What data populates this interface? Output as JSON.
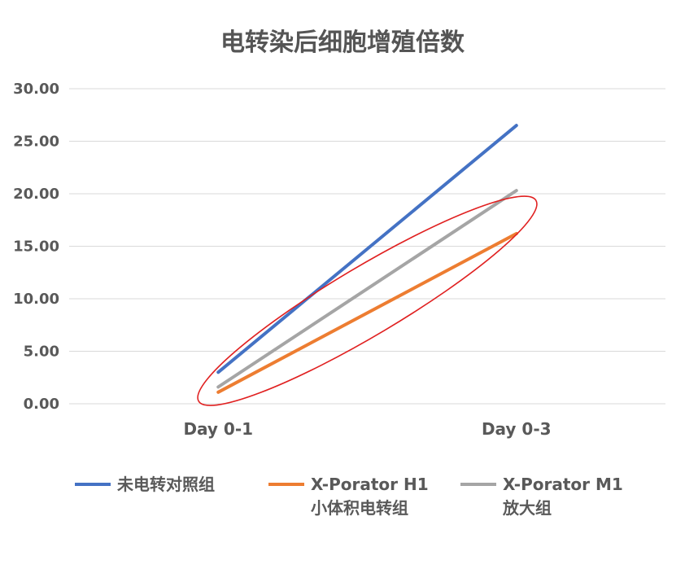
{
  "chart_data": {
    "type": "line",
    "title": "电转染后细胞增殖倍数",
    "categories": [
      "Day 0-1",
      "Day 0-3"
    ],
    "ylim": [
      0,
      30
    ],
    "y_ticks": [
      "0.00",
      "5.00",
      "10.00",
      "15.00",
      "20.00",
      "25.00",
      "30.00"
    ],
    "grid": true,
    "legend_position": "bottom",
    "series": [
      {
        "name": "未电转对照组",
        "legend_lines": [
          "未电转对照组"
        ],
        "values": [
          3.0,
          26.5
        ],
        "color": "#4472C4"
      },
      {
        "name": "X-Porator H1 小体积电转组",
        "legend_lines": [
          "X-Porator H1",
          "小体积电转组"
        ],
        "values": [
          1.1,
          16.2
        ],
        "color": "#ED7D31"
      },
      {
        "name": "X-Porator M1 放大组",
        "legend_lines": [
          "X-Porator M1",
          "放大组"
        ],
        "values": [
          1.6,
          20.3
        ],
        "color": "#A5A5A5"
      }
    ],
    "annotation": {
      "shape": "ellipse",
      "color": "#E02020",
      "note_target": "X-Porator series"
    }
  }
}
